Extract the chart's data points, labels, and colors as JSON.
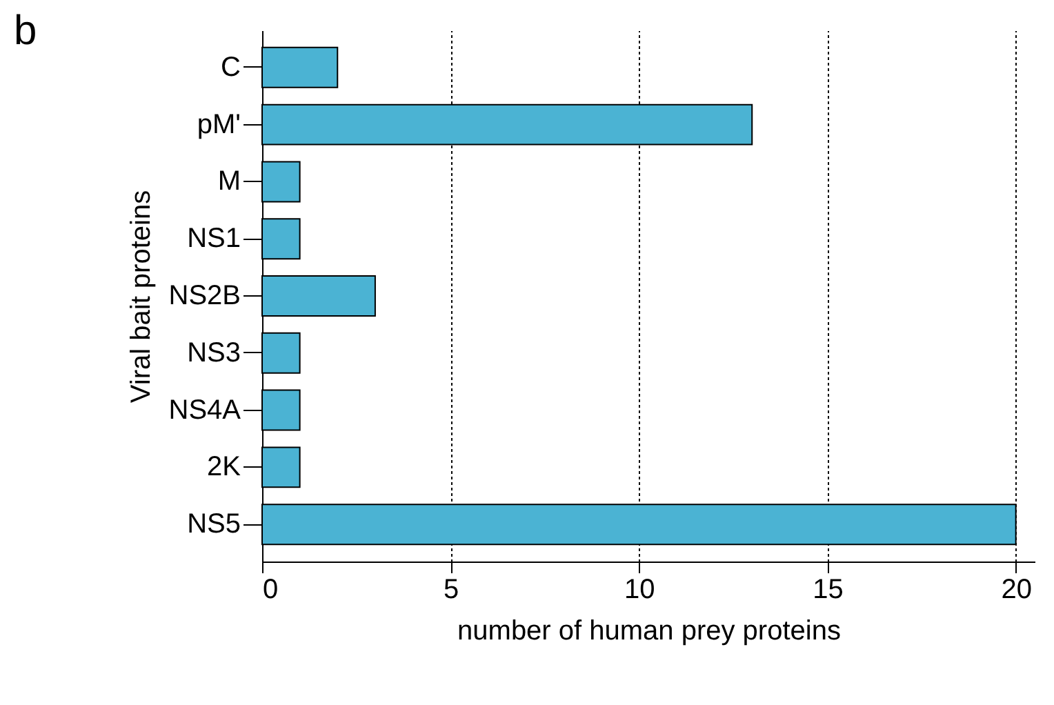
{
  "chart_data": {
    "type": "bar",
    "orientation": "horizontal",
    "xlabel": "number of human prey proteins",
    "ylabel": "Viral bait proteins",
    "categories": [
      "C",
      "pM'",
      "M",
      "NS1",
      "NS2B",
      "NS3",
      "NS4A",
      "2K",
      "NS5"
    ],
    "values": [
      2,
      13,
      1,
      1,
      3,
      1,
      1,
      1,
      20
    ],
    "color": "#4bb3d3",
    "xlim": [
      0,
      20.5
    ],
    "xticks": [
      0,
      5,
      10,
      15,
      20
    ],
    "grid": "x",
    "annotations": [
      "b"
    ]
  }
}
